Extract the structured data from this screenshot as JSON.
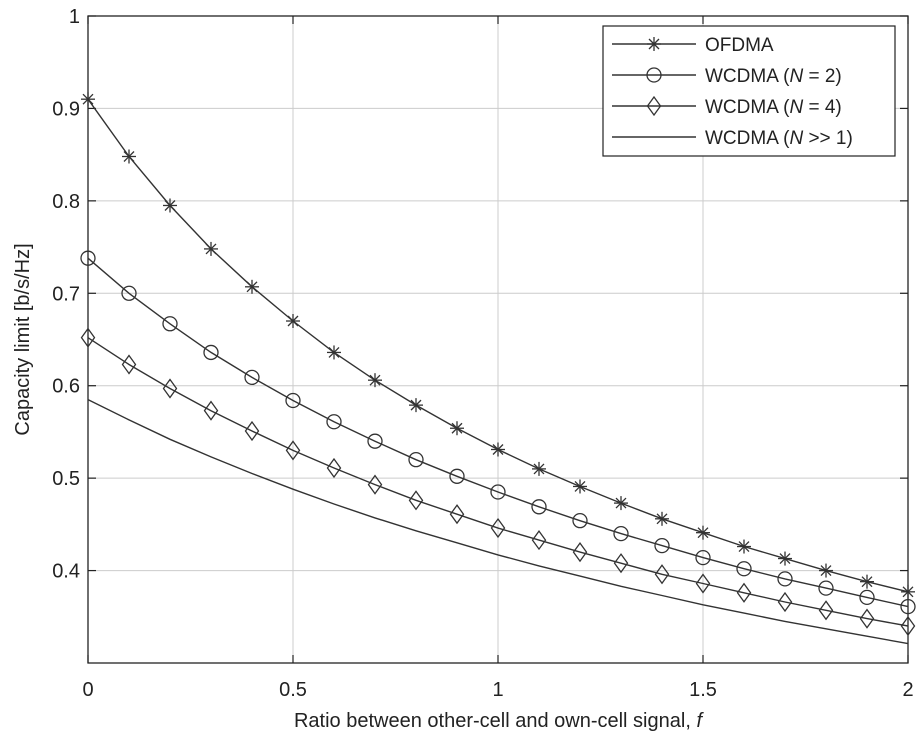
{
  "chart_data": {
    "type": "line",
    "title": "",
    "xlabel": "Ratio between other-cell and own-cell signal, ",
    "xlabel_var": "f",
    "ylabel": "Capacity limit [b/s/Hz]",
    "xlim": [
      0,
      2
    ],
    "ylim": [
      0.3,
      1.0
    ],
    "xticks": [
      0,
      0.5,
      1,
      1.5,
      2
    ],
    "xtick_labels": [
      "0",
      "0.5",
      "1",
      "1.5",
      "2"
    ],
    "yticks": [
      0.4,
      0.5,
      0.6,
      0.7,
      0.8,
      0.9,
      1.0
    ],
    "ytick_labels": [
      "0.4",
      "0.5",
      "0.6",
      "0.7",
      "0.8",
      "0.9",
      "1"
    ],
    "grid": true,
    "legend_position": "top-right",
    "x": [
      0,
      0.1,
      0.2,
      0.3,
      0.4,
      0.5,
      0.6,
      0.7,
      0.8,
      0.9,
      1.0,
      1.1,
      1.2,
      1.3,
      1.4,
      1.5,
      1.6,
      1.7,
      1.8,
      1.9,
      2.0
    ],
    "series": [
      {
        "legend_parts": [
          "OFDMA"
        ],
        "marker": "star",
        "values": [
          0.91,
          0.848,
          0.795,
          0.748,
          0.707,
          0.67,
          0.636,
          0.606,
          0.579,
          0.554,
          0.531,
          0.51,
          0.491,
          0.473,
          0.456,
          0.441,
          0.426,
          0.413,
          0.4,
          0.388,
          0.377
        ]
      },
      {
        "legend_parts": [
          "WCDMA (",
          "N",
          " = 2)"
        ],
        "marker": "circle",
        "values": [
          0.738,
          0.7,
          0.667,
          0.636,
          0.609,
          0.584,
          0.561,
          0.54,
          0.52,
          0.502,
          0.485,
          0.469,
          0.454,
          0.44,
          0.427,
          0.414,
          0.402,
          0.391,
          0.381,
          0.371,
          0.361
        ]
      },
      {
        "legend_parts": [
          "WCDMA (",
          "N",
          " = 4)"
        ],
        "marker": "diamond",
        "values": [
          0.652,
          0.623,
          0.597,
          0.573,
          0.551,
          0.53,
          0.511,
          0.493,
          0.476,
          0.461,
          0.446,
          0.433,
          0.42,
          0.408,
          0.396,
          0.386,
          0.376,
          0.366,
          0.357,
          0.348,
          0.34
        ]
      },
      {
        "legend_parts": [
          "WCDMA (",
          "N",
          " >> 1)"
        ],
        "marker": "none",
        "values": [
          0.585,
          0.563,
          0.542,
          0.523,
          0.505,
          0.488,
          0.472,
          0.457,
          0.443,
          0.43,
          0.417,
          0.405,
          0.394,
          0.383,
          0.373,
          0.363,
          0.354,
          0.345,
          0.337,
          0.329,
          0.321
        ]
      }
    ],
    "colors": {
      "line": "#333333",
      "grid": "#cccccc",
      "axis": "#222222"
    }
  }
}
